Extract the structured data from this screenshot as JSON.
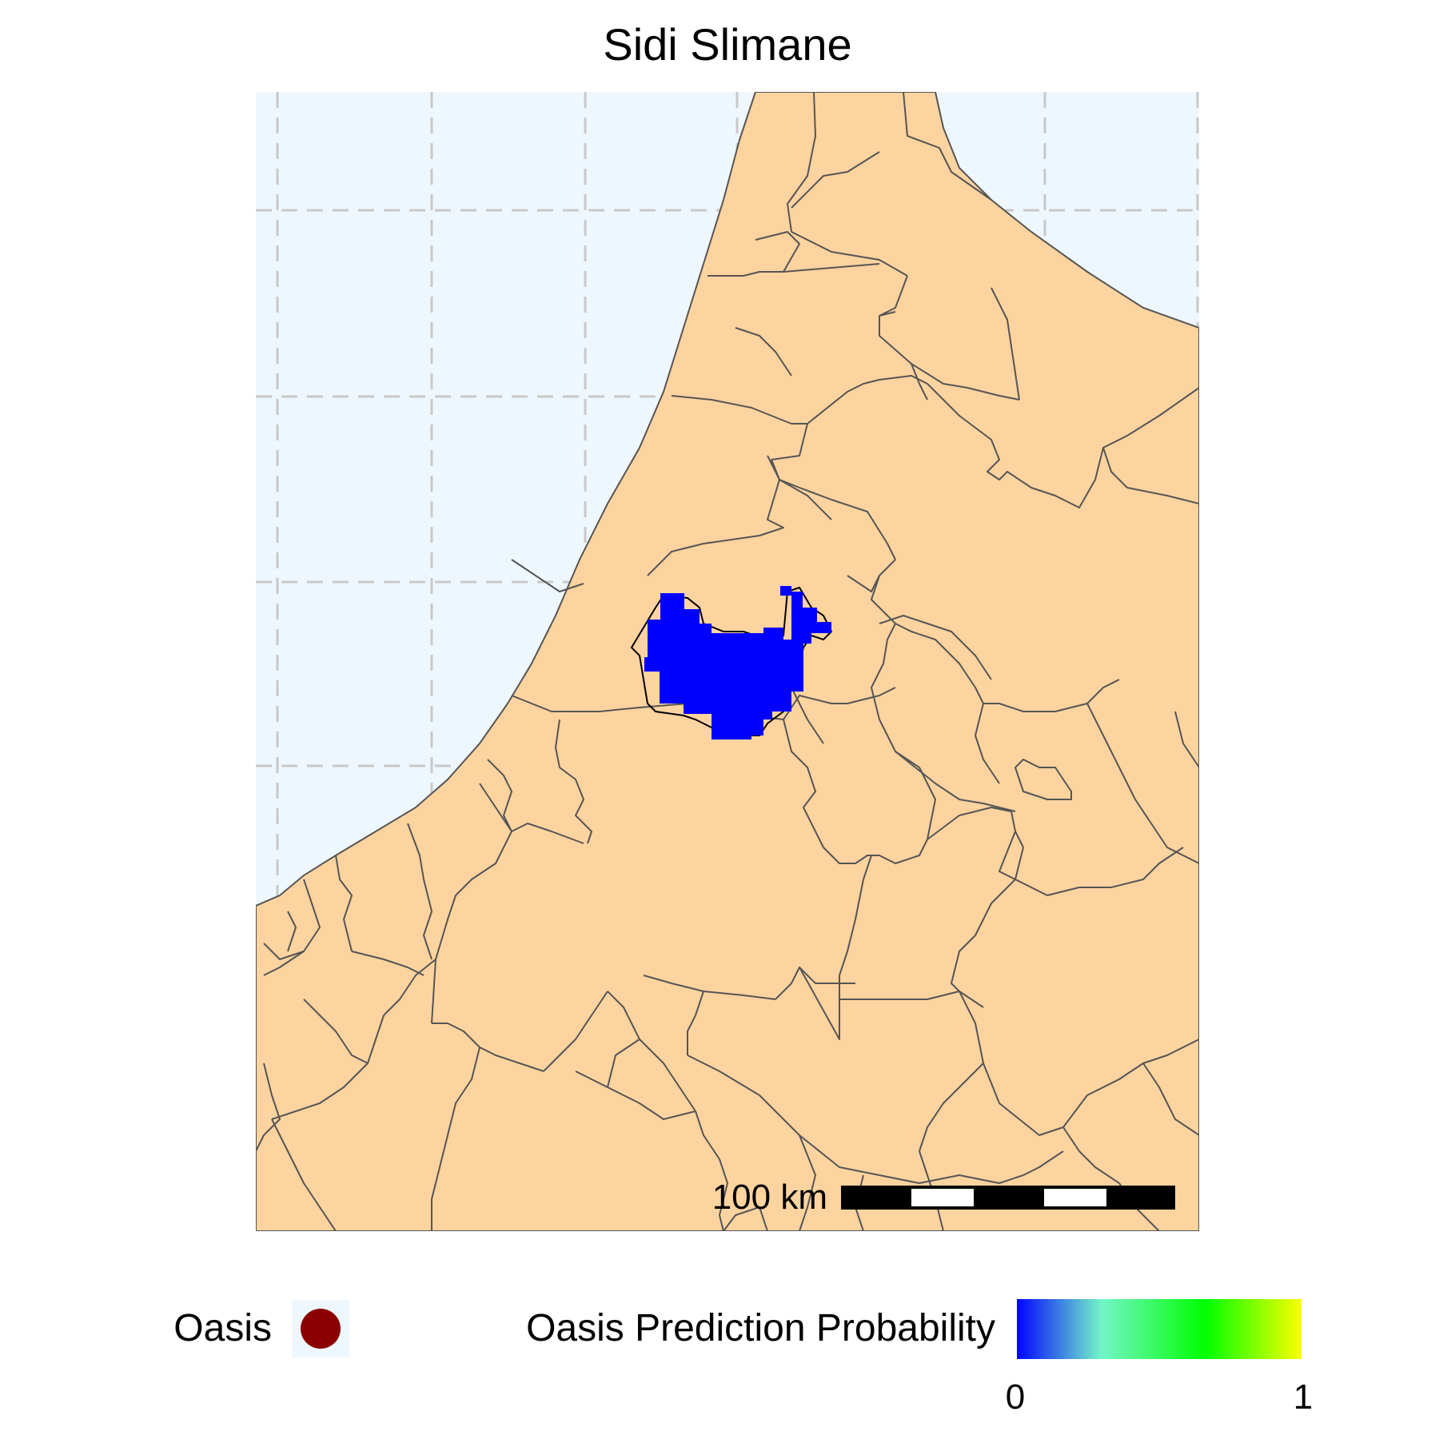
{
  "title": "Sidi Slimane",
  "scale_bar": {
    "label": "100 km"
  },
  "legend": {
    "oasis_label": "Oasis",
    "probability_label": "Oasis Prediction Probability",
    "min_label": "0",
    "max_label": "1"
  },
  "colors": {
    "sea": "#eff7fe",
    "land": "#fdd39f",
    "border": "#555555",
    "grid": "#c8c8c8",
    "region_fill": "#0000ff",
    "oasis_point": "#8b0000",
    "gradient": [
      "#0000ff",
      "#73f5c8",
      "#00ff00",
      "#ffff00"
    ]
  },
  "grid_lines": true
}
